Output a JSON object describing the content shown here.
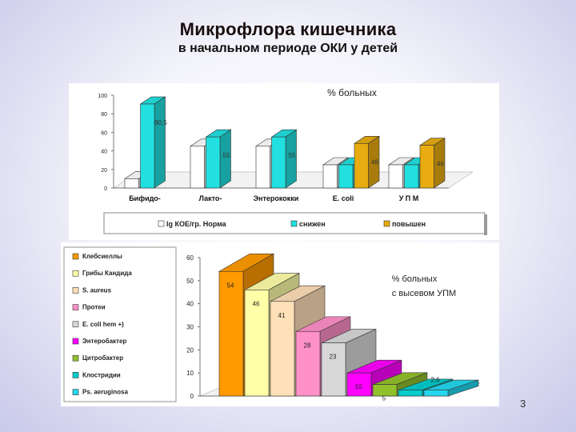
{
  "title": "Микрофлора кишечника",
  "subtitle": "в начальном периоде ОКИ у детей",
  "page_number": "3",
  "chart_data": [
    {
      "type": "bar",
      "title": "% больных",
      "categories": [
        "Бифидо-",
        "Лакто-",
        "Энтерококки",
        "E. coli",
        "У П М"
      ],
      "ylim": [
        0,
        100
      ],
      "yticks": [
        0,
        20,
        40,
        60,
        80,
        100
      ],
      "grid": false,
      "legend_position": "bottom",
      "series": [
        {
          "name": "lg КОЕ/гр. Норма",
          "color": "#ffffff",
          "values": [
            10,
            45,
            45,
            25,
            25
          ]
        },
        {
          "name": "снижен",
          "color": "#22e0e0",
          "values": [
            90.5,
            55,
            55,
            25,
            25
          ]
        },
        {
          "name": "повышен",
          "color": "#e8ac10",
          "values": [
            0,
            0,
            0,
            48,
            46
          ]
        }
      ],
      "data_labels": [
        {
          "category": "Бифидо-",
          "text": "90,5"
        },
        {
          "category": "Лакто-",
          "text": "55"
        },
        {
          "category": "Энтерококки",
          "text": "55"
        },
        {
          "category": "E. coli",
          "text": "48"
        },
        {
          "category": "У П М",
          "text": "46"
        }
      ]
    },
    {
      "type": "bar",
      "title": "% больных\nс высевом УПМ",
      "categories": [
        "Клебсиеллы",
        "Грибы Кандида",
        "S. aureus",
        "Протеи",
        "E. coli hem +)",
        "Энтеробактер",
        "Цитробактер",
        "Клостридии",
        "Ps. aeruginosa"
      ],
      "values": [
        54,
        46,
        41,
        28,
        23,
        10,
        5,
        2.6,
        2.6
      ],
      "labels": [
        "54",
        "46",
        "41",
        "28",
        "23",
        "10",
        "5",
        "2,6",
        ""
      ],
      "colors": [
        "#ff9a00",
        "#ffffa8",
        "#ffe0b8",
        "#ff90c8",
        "#d8d8d8",
        "#ff00ff",
        "#92c02c",
        "#00cccc",
        "#22d8f0"
      ],
      "ylim": [
        0,
        60
      ],
      "yticks": [
        0,
        10,
        20,
        30,
        40,
        50,
        60
      ],
      "grid": false,
      "legend_position": "left"
    }
  ]
}
